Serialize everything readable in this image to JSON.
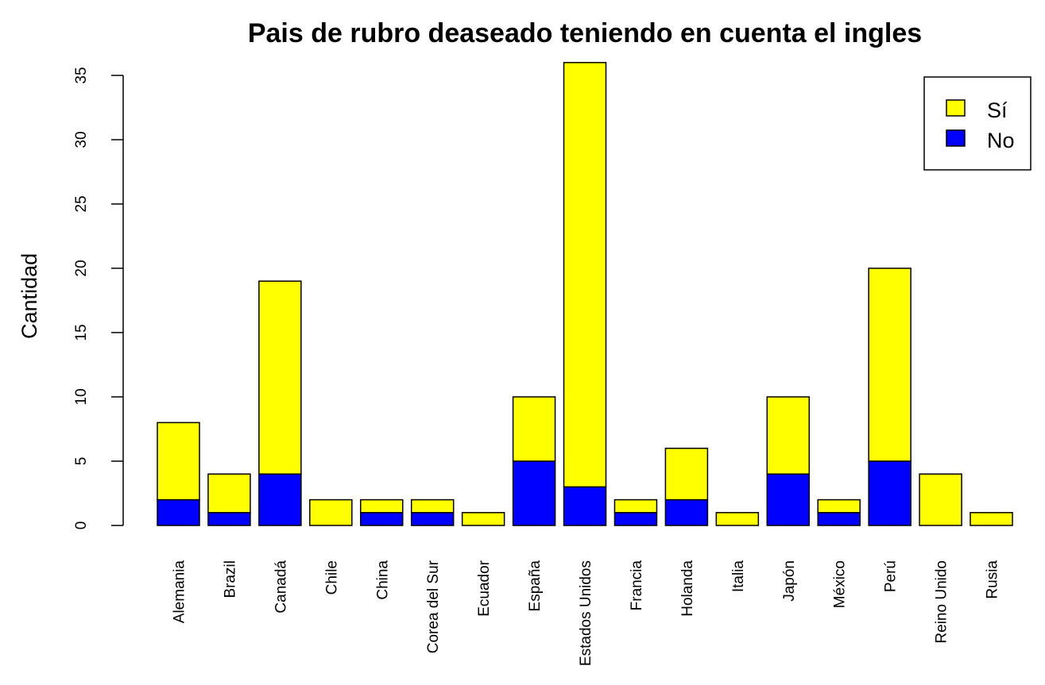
{
  "chart_data": {
    "type": "bar",
    "stacked": true,
    "title": "Pais de rubro deaseado teniendo en cuenta el ingles",
    "xlabel": "",
    "ylabel": "Cantidad",
    "ylim": [
      0,
      36
    ],
    "yticks": [
      0,
      5,
      10,
      15,
      20,
      25,
      30,
      35
    ],
    "grid": false,
    "legend_position": "top-right",
    "categories": [
      "Alemania",
      "Brazil",
      "Canadá",
      "Chile",
      "China",
      "Corea del Sur",
      "Ecuador",
      "España",
      "Estados Unidos",
      "Francia",
      "Holanda",
      "Italia",
      "Japón",
      "México",
      "Perú",
      "Reino Unido",
      "Rusia"
    ],
    "series": [
      {
        "name": "No",
        "color": "#0000ff",
        "values": [
          2,
          1,
          4,
          0,
          1,
          1,
          0,
          5,
          3,
          1,
          2,
          0,
          4,
          1,
          5,
          0,
          0
        ]
      },
      {
        "name": "Sí",
        "color": "#ffff00",
        "values": [
          6,
          3,
          15,
          2,
          1,
          1,
          1,
          5,
          33,
          1,
          4,
          1,
          6,
          1,
          15,
          4,
          1
        ]
      }
    ],
    "legend": [
      {
        "label": "Sí",
        "color": "#ffff00"
      },
      {
        "label": "No",
        "color": "#0000ff"
      }
    ]
  }
}
